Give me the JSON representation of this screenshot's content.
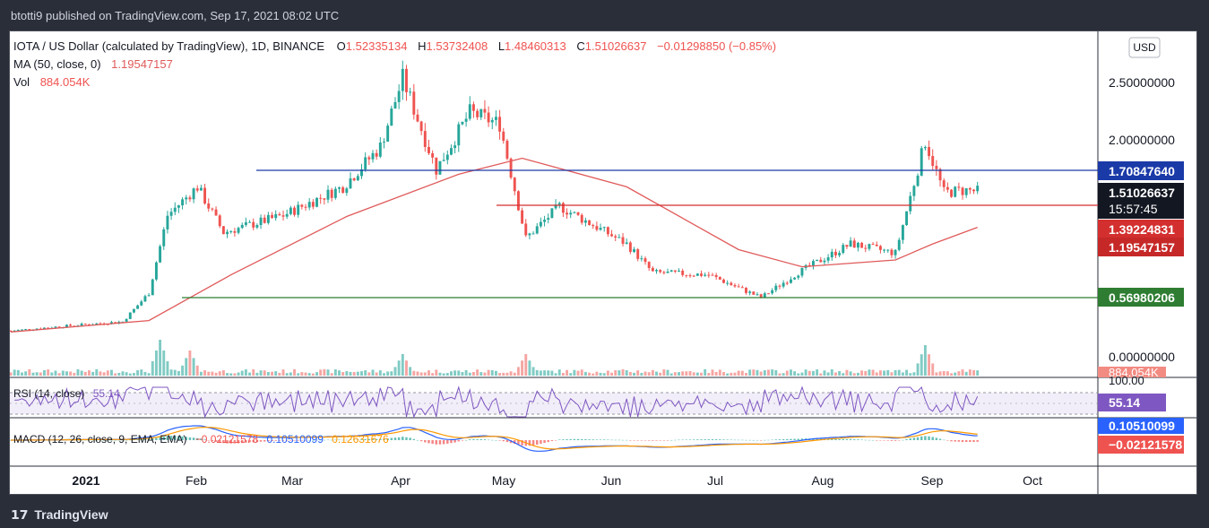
{
  "header": {
    "published": "btotti9 published on TradingView.com, Sep 17, 2021 08:02 UTC"
  },
  "footer": {
    "brand": "TradingView",
    "logo_icon": "tradingview-logo-icon"
  },
  "legend": {
    "symbol": "IOTA / US Dollar (calculated by TradingView), 1D, BINANCE",
    "o_label": "O",
    "o": "1.52335134",
    "h_label": "H",
    "h": "1.53732408",
    "l_label": "L",
    "l": "1.48460313",
    "c_label": "C",
    "c": "1.51026637",
    "change": "−0.01298850 (−0.85%)",
    "ma_label": "MA (50, close, 0)",
    "ma": "1.19547157",
    "vol_label": "Vol",
    "vol": "884.054K"
  },
  "currency_button": "USD",
  "price_axis": [
    "2.50000000",
    "2.00000000",
    "0.00000000"
  ],
  "price_tags": {
    "resistance": "1.70847640",
    "last": "1.51026637",
    "countdown": "15:57:45",
    "support_red": "1.39224831",
    "ma": "1.19547157",
    "support_green": "0.56980206",
    "volume": "884.054K"
  },
  "rsi": {
    "label": "RSI (14, close)",
    "value": "55.14",
    "axis_top": "100.00",
    "tag": "55.14"
  },
  "macd": {
    "label": "MACD (12, 26, close, 9, EMA, EMA)",
    "hist": "−0.02121578",
    "macd": "0.10510099",
    "signal": "0.12631676",
    "tag_macd": "0.10510099",
    "tag_hist": "−0.02121578"
  },
  "time_axis": [
    "2021",
    "Feb",
    "Mar",
    "Apr",
    "May",
    "Jun",
    "Jul",
    "Aug",
    "Sep",
    "Oct"
  ],
  "colors": {
    "up": "#26a69a",
    "down": "#ef5350",
    "ma": "#e05a5a",
    "resistance_line": "#1a3aa8",
    "support_red_line": "#d32f2f",
    "support_green_line": "#2e7d32",
    "rsi": "#7e57c2",
    "macd": "#2962ff",
    "signal": "#ff9800"
  },
  "chart_data": {
    "type": "candlestick",
    "interval": "1D",
    "x_range": [
      "2021-01-01",
      "2021-10-07"
    ],
    "ylim": [
      0,
      2.7
    ],
    "horizontal_levels": [
      1.7084764,
      1.39224831,
      0.56980206
    ],
    "key_closes": [
      [
        "2021-01-01",
        0.29
      ],
      [
        "2021-01-15",
        0.33
      ],
      [
        "2021-01-31",
        0.37
      ],
      [
        "2021-02-07",
        0.62
      ],
      [
        "2021-02-12",
        1.3
      ],
      [
        "2021-02-20",
        1.55
      ],
      [
        "2021-02-27",
        1.15
      ],
      [
        "2021-03-15",
        1.3
      ],
      [
        "2021-03-31",
        1.55
      ],
      [
        "2021-04-10",
        1.9
      ],
      [
        "2021-04-16",
        2.5
      ],
      [
        "2021-04-25",
        1.7
      ],
      [
        "2021-05-04",
        2.2
      ],
      [
        "2021-05-12",
        2.1
      ],
      [
        "2021-05-19",
        1.1
      ],
      [
        "2021-05-28",
        1.38
      ],
      [
        "2021-06-15",
        1.05
      ],
      [
        "2021-06-22",
        0.8
      ],
      [
        "2021-07-07",
        0.78
      ],
      [
        "2021-07-21",
        0.58
      ],
      [
        "2021-07-31",
        0.8
      ],
      [
        "2021-08-14",
        1.05
      ],
      [
        "2021-08-26",
        0.97
      ],
      [
        "2021-09-03",
        1.95
      ],
      [
        "2021-09-08",
        1.5
      ],
      [
        "2021-09-14",
        1.52
      ],
      [
        "2021-09-17",
        1.51
      ]
    ],
    "ma50_points": [
      [
        "2021-01-01",
        0.28
      ],
      [
        "2021-02-07",
        0.38
      ],
      [
        "2021-03-01",
        0.78
      ],
      [
        "2021-04-01",
        1.29
      ],
      [
        "2021-05-01",
        1.66
      ],
      [
        "2021-05-18",
        1.8
      ],
      [
        "2021-06-15",
        1.55
      ],
      [
        "2021-07-15",
        1.0
      ],
      [
        "2021-08-01",
        0.85
      ],
      [
        "2021-08-26",
        0.91
      ],
      [
        "2021-09-05",
        1.05
      ],
      [
        "2021-09-17",
        1.195
      ]
    ],
    "volume_spikes": [
      [
        "2021-02-10",
        1.0
      ],
      [
        "2021-02-18",
        0.7
      ],
      [
        "2021-04-16",
        0.6
      ],
      [
        "2021-05-19",
        0.6
      ],
      [
        "2021-09-03",
        0.85
      ]
    ]
  }
}
